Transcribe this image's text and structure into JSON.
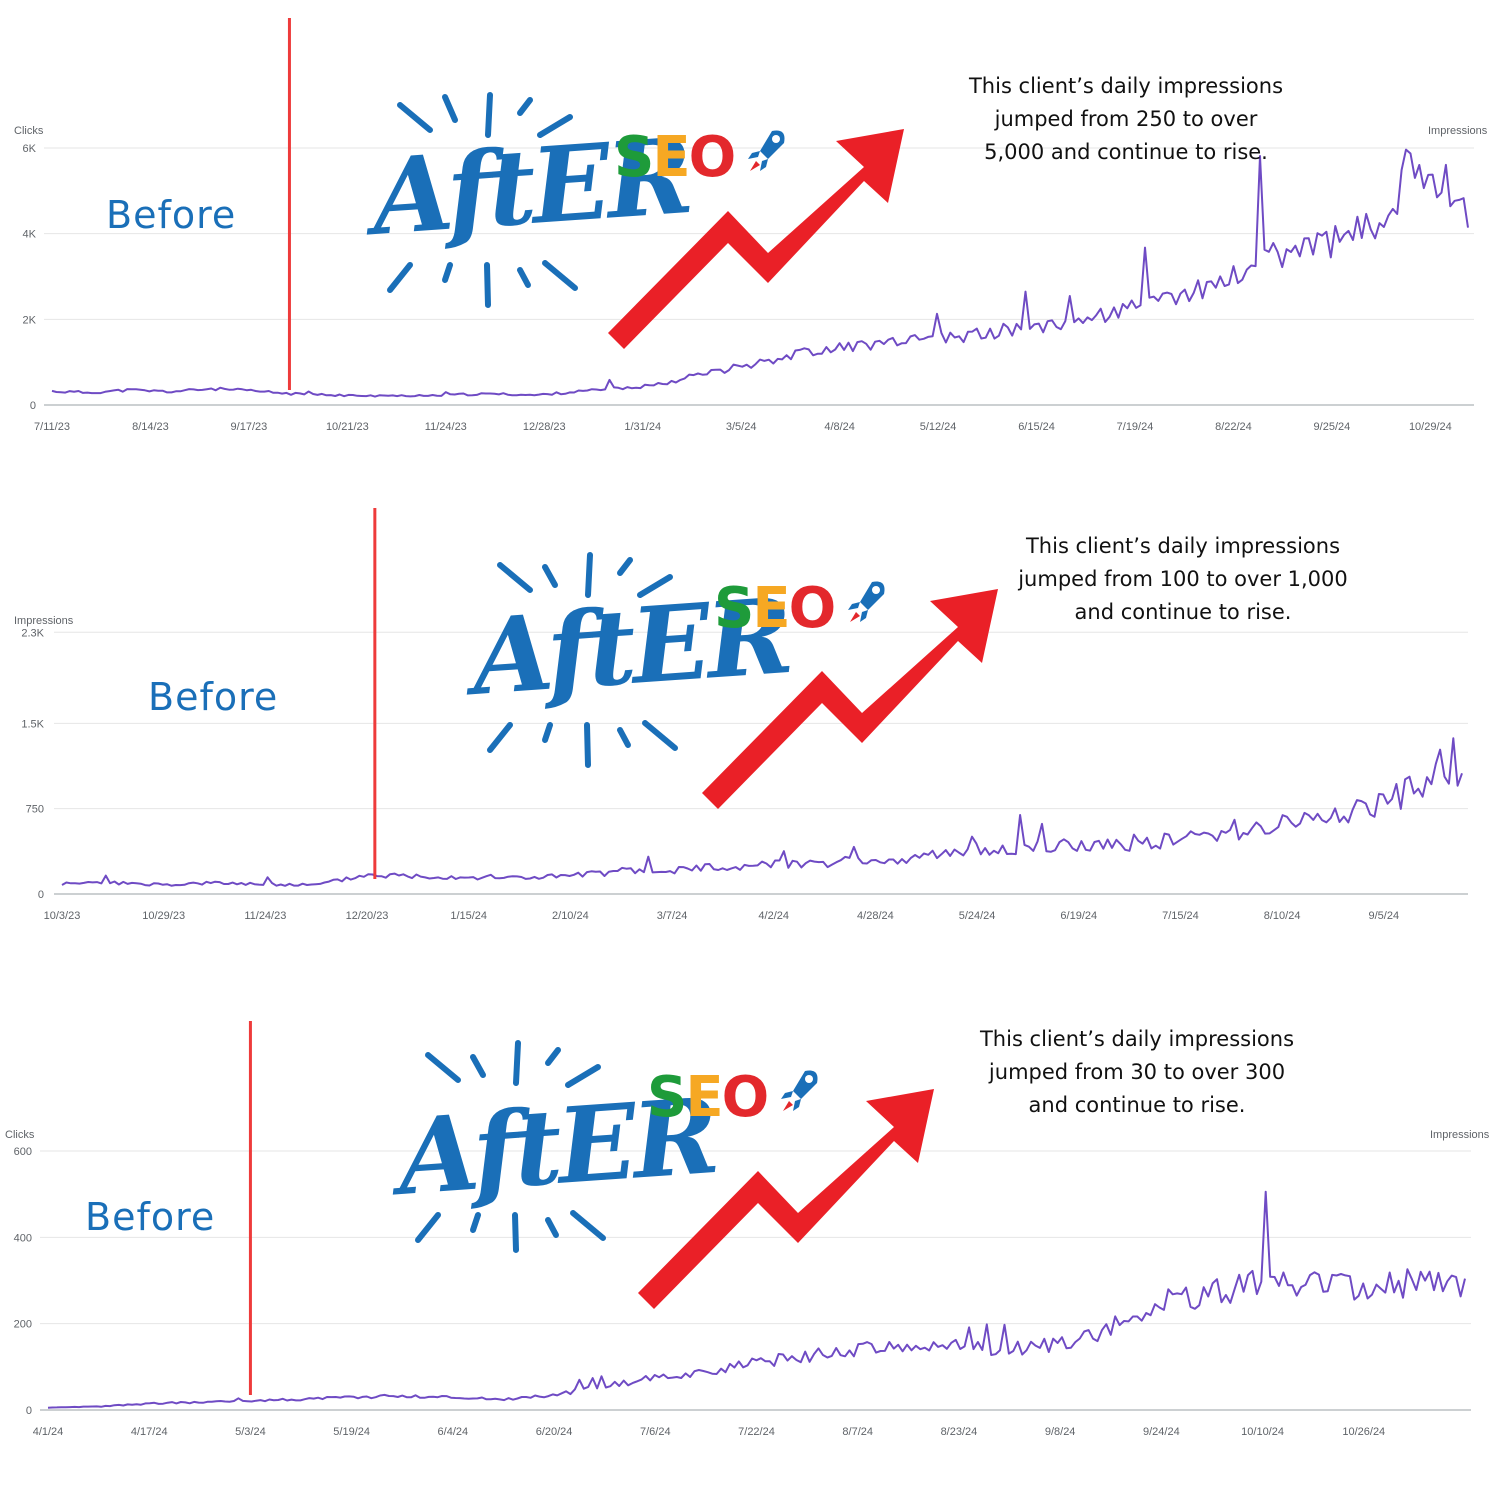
{
  "colors": {
    "line": "#6f4bc4",
    "divider": "#ee3b3b",
    "arrow": "#ea2027",
    "text_blue": "#1a6fb8"
  },
  "icons": [
    "burst-icon",
    "rocket-icon",
    "trend-arrow-icon"
  ],
  "panels": [
    {
      "before_text": "Before",
      "after_text": "AftER",
      "seo": {
        "s": "S",
        "e": "E",
        "o": "O"
      },
      "caption": [
        "This client’s daily impressions",
        "jumped from 250 to over",
        "5,000 and continue to rise."
      ],
      "left_axis_title": "Clicks",
      "right_axis_title": "Impressions"
    },
    {
      "before_text": "Before",
      "after_text": "AftER",
      "seo": {
        "s": "S",
        "e": "E",
        "o": "O"
      },
      "caption": [
        "This client’s daily impressions",
        "jumped from 100 to over 1,000",
        "and continue to rise."
      ],
      "left_axis_title": "Impressions",
      "right_axis_title": ""
    },
    {
      "before_text": "Before",
      "after_text": "AftER",
      "seo": {
        "s": "S",
        "e": "E",
        "o": "O"
      },
      "caption": [
        "This client’s daily impressions",
        "jumped from 30 to over 300",
        "and continue to rise."
      ],
      "left_axis_title": "Clicks",
      "right_axis_title": "Impressions"
    }
  ],
  "chart_data": [
    {
      "type": "line",
      "title": "",
      "ylabel": "Clicks",
      "y2label": "Impressions",
      "yticks": [
        "0",
        "2K",
        "4K",
        "6K"
      ],
      "ylim": [
        0,
        6000
      ],
      "xticks": [
        "7/11/23",
        "8/14/23",
        "9/17/23",
        "10/21/23",
        "11/24/23",
        "12/28/23",
        "1/31/24",
        "3/5/24",
        "4/8/24",
        "5/12/24",
        "6/15/24",
        "7/19/24",
        "8/22/24",
        "9/25/24",
        "10/29/24"
      ],
      "grid": true,
      "marker_date": "10/1/23",
      "series": [
        {
          "x": [
            "7/11/23",
            "7/24/23",
            "8/7/23",
            "8/21/23",
            "9/4/23",
            "9/18/23",
            "10/2/23",
            "10/16/23",
            "10/30/23",
            "11/13/23",
            "11/27/23",
            "12/11/23",
            "12/25/23",
            "1/8/24",
            "1/22/24",
            "2/5/24",
            "2/19/24",
            "3/4/24",
            "3/18/24",
            "4/1/24",
            "4/15/24",
            "4/29/24",
            "5/13/24",
            "5/27/24",
            "6/10/24",
            "6/24/24",
            "7/8/24",
            "7/22/24",
            "8/5/24",
            "8/19/24",
            "9/2/24",
            "9/16/24",
            "9/30/24",
            "10/14/24",
            "10/21/24",
            "10/28/24",
            "11/4/24",
            "11/11/24"
          ],
          "values": [
            320,
            290,
            350,
            310,
            380,
            330,
            260,
            230,
            210,
            220,
            240,
            260,
            230,
            310,
            380,
            480,
            700,
            900,
            1100,
            1300,
            1400,
            1450,
            1550,
            1650,
            1800,
            1950,
            2100,
            2300,
            2600,
            2900,
            3400,
            3700,
            3900,
            4300,
            5500,
            5600,
            5100,
            4600
          ]
        }
      ]
    },
    {
      "type": "line",
      "title": "",
      "ylabel": "Impressions",
      "yticks": [
        "0",
        "750",
        "1.5K",
        "2.3K"
      ],
      "ylim": [
        0,
        2250
      ],
      "xticks": [
        "10/3/23",
        "10/29/23",
        "11/24/23",
        "12/20/23",
        "1/15/24",
        "2/10/24",
        "3/7/24",
        "4/2/24",
        "4/28/24",
        "5/24/24",
        "6/19/24",
        "7/15/24",
        "8/10/24",
        "9/5/24"
      ],
      "grid": true,
      "marker_date": "12/22/23",
      "series": [
        {
          "x": [
            "10/3/23",
            "10/16/23",
            "10/29/23",
            "11/11/23",
            "11/24/23",
            "12/7/23",
            "12/20/23",
            "1/2/24",
            "1/15/24",
            "1/28/24",
            "2/10/24",
            "2/23/24",
            "3/7/24",
            "3/20/24",
            "4/2/24",
            "4/15/24",
            "4/28/24",
            "5/11/24",
            "5/24/24",
            "6/6/24",
            "6/19/24",
            "7/2/24",
            "7/15/24",
            "7/28/24",
            "8/10/24",
            "8/23/24",
            "9/5/24",
            "9/18/24",
            "9/25/24"
          ],
          "values": [
            90,
            100,
            80,
            95,
            85,
            80,
            170,
            160,
            150,
            145,
            160,
            200,
            210,
            240,
            270,
            280,
            290,
            330,
            390,
            410,
            430,
            450,
            480,
            560,
            620,
            700,
            800,
            1000,
            950
          ]
        }
      ]
    },
    {
      "type": "line",
      "title": "",
      "ylabel": "Clicks",
      "y2label": "Impressions",
      "yticks": [
        "0",
        "200",
        "400",
        "600"
      ],
      "ylim": [
        0,
        600
      ],
      "xticks": [
        "4/1/24",
        "4/17/24",
        "5/3/24",
        "5/19/24",
        "6/4/24",
        "6/20/24",
        "7/6/24",
        "7/22/24",
        "8/7/24",
        "8/23/24",
        "9/8/24",
        "9/24/24",
        "10/10/24",
        "10/26/24"
      ],
      "grid": true,
      "marker_date": "5/3/24",
      "series": [
        {
          "x": [
            "4/1/24",
            "4/9/24",
            "4/17/24",
            "4/25/24",
            "5/3/24",
            "5/11/24",
            "5/19/24",
            "5/27/24",
            "6/4/24",
            "6/12/24",
            "6/20/24",
            "6/28/24",
            "7/6/24",
            "7/14/24",
            "7/22/24",
            "7/30/24",
            "8/7/24",
            "8/15/24",
            "8/23/24",
            "8/31/24",
            "9/8/24",
            "9/16/24",
            "9/24/24",
            "10/2/24",
            "10/10/24",
            "10/18/24",
            "10/26/24",
            "11/3/24",
            "11/11/24"
          ],
          "values": [
            5,
            8,
            15,
            18,
            22,
            25,
            30,
            32,
            30,
            25,
            35,
            55,
            75,
            90,
            110,
            125,
            140,
            145,
            150,
            140,
            155,
            190,
            250,
            270,
            300,
            290,
            280,
            300,
            290
          ]
        }
      ]
    }
  ]
}
